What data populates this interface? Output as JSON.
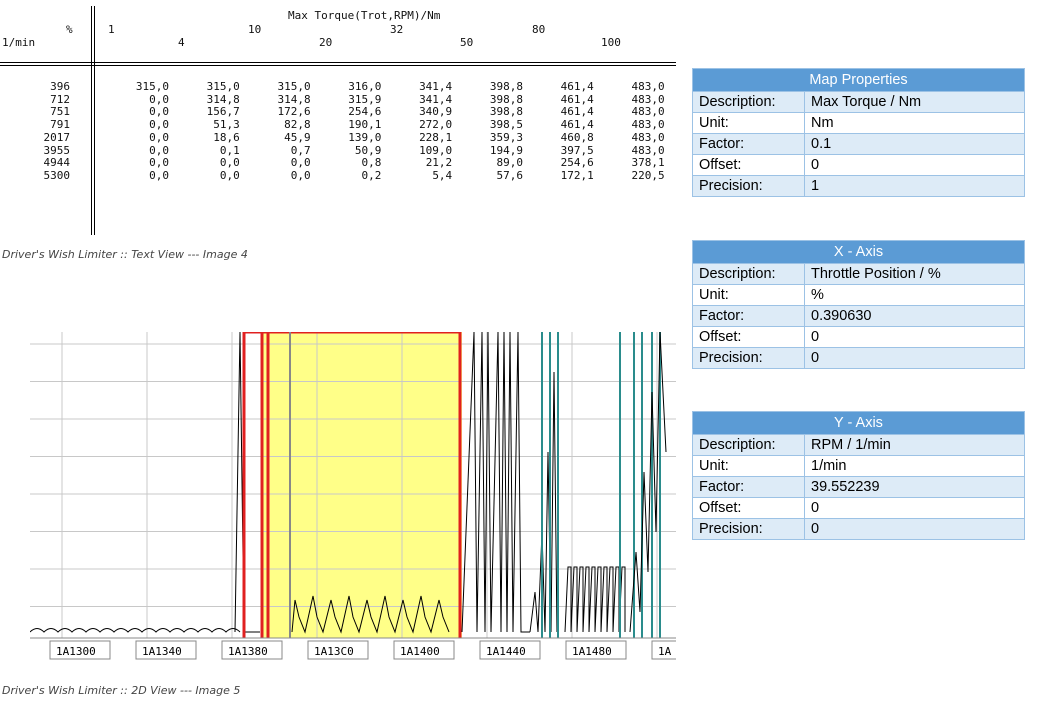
{
  "text_view": {
    "title": "Max Torque(Trot,RPM)/Nm",
    "pct_label": "%",
    "rpm_label": "1/min",
    "x_ticks_row1": [
      {
        "label": "1",
        "left": 108
      },
      {
        "label": "10",
        "left": 248
      },
      {
        "label": "32",
        "left": 390
      },
      {
        "label": "80",
        "left": 532
      }
    ],
    "x_ticks_row2": [
      {
        "label": "4",
        "left": 178
      },
      {
        "label": "20",
        "left": 319
      },
      {
        "label": "50",
        "left": 460
      },
      {
        "label": "100",
        "left": 601
      }
    ],
    "rows": [
      {
        "rpm": "396",
        "values": [
          "315,0",
          "315,0",
          "315,0",
          "316,0",
          "341,4",
          "398,8",
          "461,4",
          "483,0"
        ]
      },
      {
        "rpm": "712",
        "values": [
          "0,0",
          "314,8",
          "314,8",
          "315,9",
          "341,4",
          "398,8",
          "461,4",
          "483,0"
        ]
      },
      {
        "rpm": "751",
        "values": [
          "0,0",
          "156,7",
          "172,6",
          "254,6",
          "340,9",
          "398,8",
          "461,4",
          "483,0"
        ]
      },
      {
        "rpm": "791",
        "values": [
          "0,0",
          "51,3",
          "82,8",
          "190,1",
          "272,0",
          "398,5",
          "461,4",
          "483,0"
        ]
      },
      {
        "rpm": "2017",
        "values": [
          "0,0",
          "18,6",
          "45,9",
          "139,0",
          "228,1",
          "359,3",
          "460,8",
          "483,0"
        ]
      },
      {
        "rpm": "3955",
        "values": [
          "0,0",
          "0,1",
          "0,7",
          "50,9",
          "109,0",
          "194,9",
          "397,5",
          "483,0"
        ]
      },
      {
        "rpm": "4944",
        "values": [
          "0,0",
          "0,0",
          "0,0",
          "0,8",
          "21,2",
          "89,0",
          "254,6",
          "378,1"
        ]
      },
      {
        "rpm": "5300",
        "values": [
          "0,0",
          "0,0",
          "0,0",
          "0,2",
          "5,4",
          "57,6",
          "172,1",
          "220,5"
        ]
      }
    ],
    "caption": "Driver's Wish Limiter :: Text View --- Image 4"
  },
  "plot_view": {
    "address_labels": [
      "1A1300",
      "1A1340",
      "1A1380",
      "1A13C0",
      "1A1400",
      "1A1440",
      "1A1480",
      "1A"
    ],
    "caption": "Driver's Wish Limiter :: 2D View --- Image 5",
    "colors": {
      "highlight": "#ffff88",
      "selection": "#e02020",
      "trace": "#000000",
      "teal": "#2a8c8c",
      "grid": "#c8c8c8"
    }
  },
  "map_properties": {
    "header": "Map Properties",
    "rows": [
      {
        "key": "Description:",
        "value": "Max Torque / Nm"
      },
      {
        "key": "Unit:",
        "value": "Nm"
      },
      {
        "key": "Factor:",
        "value": "0.1"
      },
      {
        "key": "Offset:",
        "value": "0"
      },
      {
        "key": "Precision:",
        "value": "1"
      }
    ]
  },
  "x_axis": {
    "header": "X - Axis",
    "rows": [
      {
        "key": "Description:",
        "value": "Throttle Position / %"
      },
      {
        "key": "Unit:",
        "value": "%"
      },
      {
        "key": "Factor:",
        "value": "0.390630"
      },
      {
        "key": "Offset:",
        "value": "0"
      },
      {
        "key": "Precision:",
        "value": "0"
      }
    ]
  },
  "y_axis": {
    "header": "Y - Axis",
    "rows": [
      {
        "key": "Description:",
        "value": "RPM / 1/min"
      },
      {
        "key": "Unit:",
        "value": "1/min"
      },
      {
        "key": "Factor:",
        "value": "39.552239"
      },
      {
        "key": "Offset:",
        "value": "0"
      },
      {
        "key": "Precision:",
        "value": "0"
      }
    ]
  }
}
